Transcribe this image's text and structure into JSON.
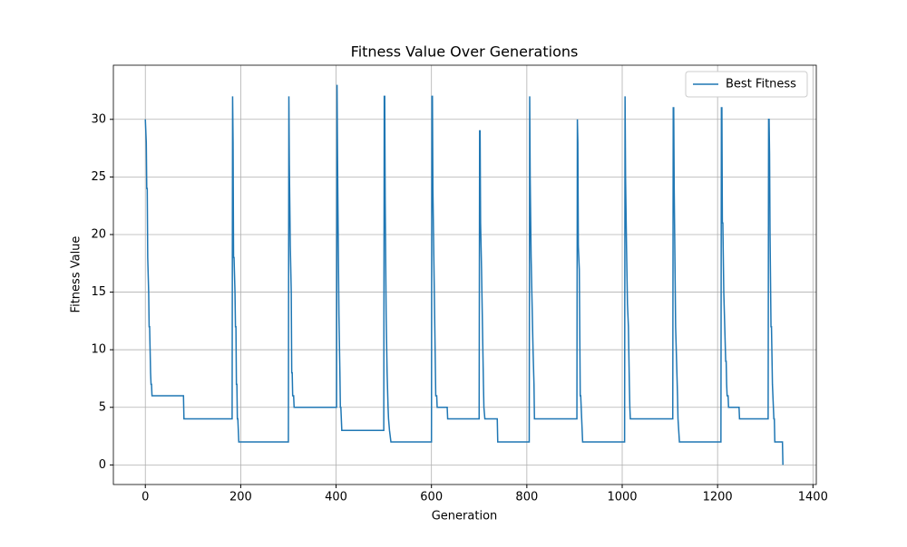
{
  "chart_data": {
    "type": "line",
    "title": "Fitness Value Over Generations",
    "xlabel": "Generation",
    "ylabel": "Fitness Value",
    "x": [
      0,
      2,
      3,
      4,
      5,
      7,
      8,
      9,
      10,
      11,
      12,
      13,
      14,
      80,
      81,
      182,
      183,
      184,
      185,
      186,
      188,
      189,
      190,
      191,
      192,
      193,
      194,
      196,
      300,
      301,
      302,
      304,
      306,
      307,
      308,
      309,
      311,
      312,
      401,
      402,
      403,
      404,
      406,
      408,
      409,
      410,
      412,
      500,
      501,
      502,
      503,
      505,
      507,
      509,
      510,
      512,
      515,
      600,
      601,
      602,
      603,
      605,
      607,
      609,
      611,
      612,
      633,
      634,
      700,
      701,
      702,
      703,
      705,
      707,
      709,
      710,
      712,
      738,
      739,
      805,
      806,
      807,
      809,
      811,
      813,
      815,
      816,
      905,
      906,
      907,
      908,
      910,
      912,
      913,
      915,
      917,
      1005,
      1006,
      1007,
      1009,
      1011,
      1013,
      1015,
      1016,
      1017,
      1106,
      1107,
      1108,
      1109,
      1111,
      1112,
      1114,
      1116,
      1117,
      1120,
      1207,
      1208,
      1209,
      1210,
      1211,
      1213,
      1215,
      1217,
      1218,
      1219,
      1220,
      1222,
      1223,
      1245,
      1246,
      1306,
      1307,
      1308,
      1309,
      1310,
      1312,
      1313,
      1315,
      1317,
      1318,
      1319,
      1320,
      1336,
      1337
    ],
    "series": [
      {
        "name": "Best Fitness",
        "color": "#1f77b4",
        "values": [
          30,
          28,
          24,
          24,
          18,
          15,
          12,
          12,
          10,
          8,
          7,
          7,
          6,
          6,
          4,
          4,
          32,
          28,
          18,
          18,
          15,
          12,
          12,
          7,
          7,
          4,
          4,
          2,
          2,
          32,
          26,
          19,
          15,
          8,
          8,
          6,
          6,
          5,
          5,
          33,
          27,
          22,
          13,
          8,
          5,
          5,
          3,
          3,
          32,
          32,
          23,
          13,
          8,
          5,
          4,
          3,
          2,
          2,
          32,
          32,
          24,
          18,
          12,
          6,
          6,
          5,
          5,
          4,
          4,
          29,
          29,
          21,
          17,
          12,
          7,
          5,
          4,
          4,
          2,
          2,
          32,
          25,
          18,
          14,
          10,
          7,
          4,
          4,
          30,
          28,
          19,
          17,
          6,
          6,
          4,
          2,
          2,
          32,
          25,
          19,
          14,
          12,
          7,
          5,
          4,
          4,
          31,
          31,
          24,
          16,
          12,
          9,
          6,
          4,
          2,
          2,
          31,
          31,
          21,
          21,
          15,
          12,
          9,
          9,
          7,
          6,
          6,
          5,
          5,
          4,
          4,
          30,
          30,
          27,
          20,
          12,
          12,
          7,
          5,
          4,
          4,
          2,
          2,
          0
        ]
      }
    ],
    "xlim": [
      -67,
      1407
    ],
    "ylim": [
      -1.7,
      34.7
    ],
    "xticks": [
      0,
      200,
      400,
      600,
      800,
      1000,
      1200,
      1400
    ],
    "yticks": [
      0,
      5,
      10,
      15,
      20,
      25,
      30
    ],
    "grid": true,
    "legend": "upper right"
  }
}
